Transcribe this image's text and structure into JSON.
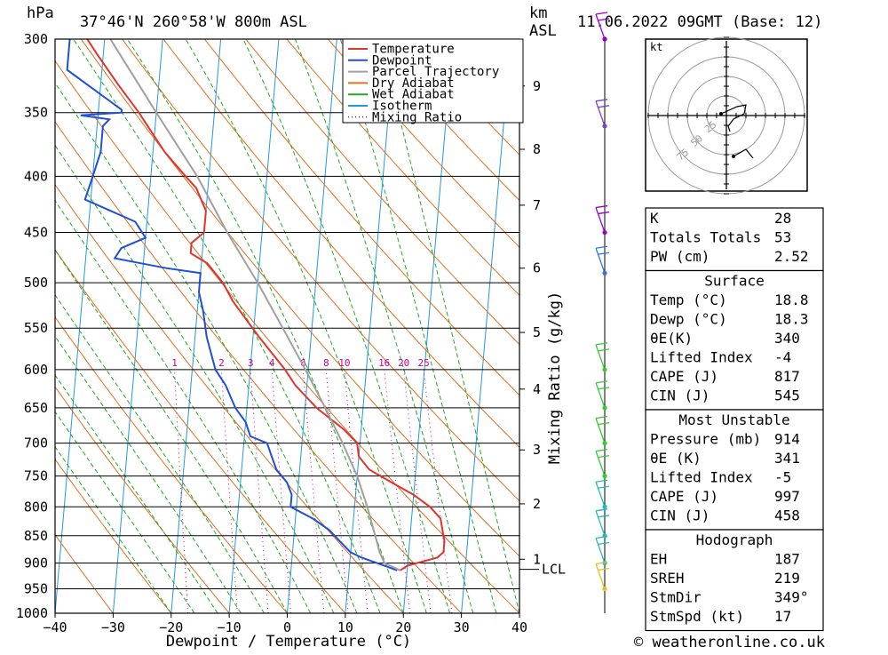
{
  "header": {
    "pressure_unit": "hPa",
    "location": "37°46'N  260°58'W  800m  ASL",
    "height_unit_top": "km",
    "height_unit_bottom": "ASL",
    "datetime": "11.06.2022  09GMT  (Base: 12)"
  },
  "footer": {
    "credit": "© weatheronline.co.uk"
  },
  "chart_data": {
    "type": "line",
    "subtype": "skew-T log-p sounding",
    "xlabel": "Dewpoint / Temperature (°C)",
    "x_ticks": [
      -40,
      -30,
      -20,
      -10,
      0,
      10,
      20,
      30,
      40
    ],
    "xlim": [
      -40,
      40
    ],
    "pressure_levels": [
      300,
      350,
      400,
      450,
      500,
      550,
      600,
      650,
      700,
      750,
      800,
      850,
      900,
      950,
      1000
    ],
    "ylim_hpa": [
      1000,
      300
    ],
    "km_ticks": [
      {
        "label": "9",
        "p": 331
      },
      {
        "label": "8",
        "p": 378
      },
      {
        "label": "7",
        "p": 425
      },
      {
        "label": "6",
        "p": 485
      },
      {
        "label": "5",
        "p": 555
      },
      {
        "label": "4",
        "p": 625
      },
      {
        "label": "3",
        "p": 710
      },
      {
        "label": "2",
        "p": 795
      },
      {
        "label": "1",
        "p": 893
      }
    ],
    "lcl_label": "LCL",
    "lcl_p": 912,
    "mixing_ratio_axis_label": "Mixing Ratio (g/kg)",
    "mixing_ratio_labels": [
      "1",
      "2",
      "3",
      "4",
      "6",
      "8",
      "10",
      "16",
      "20",
      "25"
    ],
    "legend": {
      "position": "top-right of diagram",
      "entries": [
        {
          "name": "Temperature",
          "color": "#e0342e"
        },
        {
          "name": "Dewpoint",
          "color": "#1f4fd8"
        },
        {
          "name": "Parcel Trajectory",
          "color": "#a0a0a0"
        },
        {
          "name": "Dry Adiabat",
          "color": "#e07020"
        },
        {
          "name": "Wet Adiabat",
          "color": "#22aa22"
        },
        {
          "name": "Isotherm",
          "color": "#2299dd"
        },
        {
          "name": "Mixing Ratio",
          "color": "#cc0099"
        }
      ]
    },
    "series": [
      {
        "name": "Temperature",
        "points": [
          [
            914,
            18.8
          ],
          [
            905,
            20
          ],
          [
            890,
            25
          ],
          [
            880,
            26
          ],
          [
            860,
            26
          ],
          [
            840,
            25.5
          ],
          [
            820,
            25
          ],
          [
            800,
            23
          ],
          [
            780,
            20
          ],
          [
            760,
            16
          ],
          [
            740,
            12
          ],
          [
            720,
            10
          ],
          [
            700,
            9.5
          ],
          [
            680,
            7
          ],
          [
            650,
            2
          ],
          [
            620,
            -2
          ],
          [
            600,
            -4
          ],
          [
            560,
            -9
          ],
          [
            520,
            -14
          ],
          [
            500,
            -16
          ],
          [
            480,
            -19
          ],
          [
            470,
            -22
          ],
          [
            460,
            -22
          ],
          [
            450,
            -20
          ],
          [
            430,
            -20
          ],
          [
            410,
            -22
          ],
          [
            400,
            -24
          ],
          [
            380,
            -28
          ],
          [
            350,
            -33
          ],
          [
            330,
            -37
          ],
          [
            310,
            -41
          ],
          [
            300,
            -43
          ]
        ]
      },
      {
        "name": "Dewpoint",
        "points": [
          [
            914,
            18.3
          ],
          [
            905,
            16
          ],
          [
            890,
            12
          ],
          [
            880,
            10
          ],
          [
            860,
            8
          ],
          [
            840,
            6
          ],
          [
            820,
            3
          ],
          [
            800,
            -1
          ],
          [
            780,
            -1
          ],
          [
            760,
            -2
          ],
          [
            740,
            -4
          ],
          [
            720,
            -5
          ],
          [
            700,
            -6
          ],
          [
            690,
            -9
          ],
          [
            670,
            -10
          ],
          [
            650,
            -12
          ],
          [
            620,
            -14
          ],
          [
            600,
            -16
          ],
          [
            560,
            -18
          ],
          [
            530,
            -19
          ],
          [
            510,
            -20
          ],
          [
            490,
            -20
          ],
          [
            485,
            -26
          ],
          [
            475,
            -35
          ],
          [
            465,
            -34
          ],
          [
            455,
            -30
          ],
          [
            440,
            -32
          ],
          [
            420,
            -41
          ],
          [
            400,
            -40
          ],
          [
            380,
            -39
          ],
          [
            360,
            -39
          ],
          [
            355,
            -38
          ],
          [
            352,
            -43
          ],
          [
            350,
            -36
          ],
          [
            348,
            -36
          ],
          [
            320,
            -46
          ],
          [
            305,
            -46
          ],
          [
            300,
            -46
          ]
        ]
      },
      {
        "name": "Parcel Trajectory",
        "points": [
          [
            914,
            18.8
          ],
          [
            900,
            16
          ],
          [
            880,
            15
          ],
          [
            850,
            14
          ],
          [
            800,
            12.2
          ],
          [
            750,
            10
          ],
          [
            700,
            7
          ],
          [
            650,
            3.5
          ],
          [
            600,
            -0.5
          ],
          [
            550,
            -5
          ],
          [
            500,
            -10
          ],
          [
            450,
            -16
          ],
          [
            400,
            -22
          ],
          [
            350,
            -30
          ],
          [
            300,
            -39
          ]
        ]
      }
    ]
  },
  "wind_profile": {
    "barbs": [
      {
        "p": 300,
        "color": "#9900cc"
      },
      {
        "p": 360,
        "color": "#7744cc"
      },
      {
        "p": 450,
        "color": "#9900cc"
      },
      {
        "p": 490,
        "color": "#3377dd"
      },
      {
        "p": 600,
        "color": "#33cc33"
      },
      {
        "p": 650,
        "color": "#33cc33"
      },
      {
        "p": 700,
        "color": "#33cc33"
      },
      {
        "p": 750,
        "color": "#33cc33"
      },
      {
        "p": 800,
        "color": "#22bbbb"
      },
      {
        "p": 850,
        "color": "#22bbbb"
      },
      {
        "p": 900,
        "color": "#22bbbb"
      },
      {
        "p": 950,
        "color": "#e6c020"
      }
    ]
  },
  "hodograph": {
    "unit": "kt",
    "ring_labels": [
      "25",
      "50",
      "75"
    ]
  },
  "indices": {
    "basic": [
      {
        "label": "K",
        "value": "28"
      },
      {
        "label": "Totals Totals",
        "value": "53"
      },
      {
        "label": "PW (cm)",
        "value": "2.52"
      }
    ],
    "surface": {
      "title": "Surface",
      "rows": [
        {
          "label": "Temp (°C)",
          "value": "18.8"
        },
        {
          "label": "Dewp (°C)",
          "value": "18.3"
        },
        {
          "label": "θE(K)",
          "value": "340"
        },
        {
          "label": "Lifted Index",
          "value": "-4"
        },
        {
          "label": "CAPE (J)",
          "value": "817"
        },
        {
          "label": "CIN (J)",
          "value": "545"
        }
      ]
    },
    "most_unstable": {
      "title": "Most Unstable",
      "rows": [
        {
          "label": "Pressure (mb)",
          "value": "914"
        },
        {
          "label": "θE (K)",
          "value": "341"
        },
        {
          "label": "Lifted Index",
          "value": "-5"
        },
        {
          "label": "CAPE (J)",
          "value": "997"
        },
        {
          "label": "CIN (J)",
          "value": "458"
        }
      ]
    },
    "hodograph": {
      "title": "Hodograph",
      "rows": [
        {
          "label": "EH",
          "value": "187"
        },
        {
          "label": "SREH",
          "value": "219"
        },
        {
          "label": "StmDir",
          "value": "349°"
        },
        {
          "label": "StmSpd (kt)",
          "value": "17"
        }
      ]
    }
  }
}
